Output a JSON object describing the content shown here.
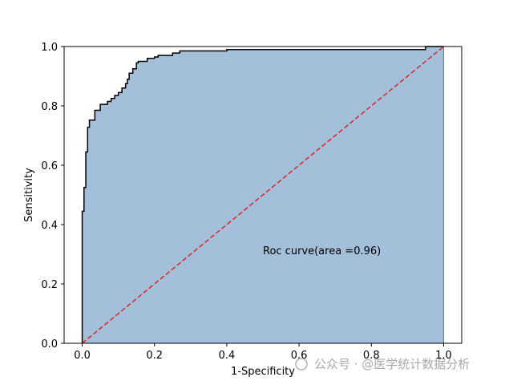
{
  "chart_data": {
    "type": "area",
    "xlabel": "1-Specificity",
    "ylabel": "Sensitivity",
    "xlim": [
      -0.05,
      1.05
    ],
    "ylim": [
      0.0,
      1.0
    ],
    "xticks": [
      "0.0",
      "0.2",
      "0.4",
      "0.6",
      "0.8",
      "1.0"
    ],
    "yticks": [
      "0.0",
      "0.2",
      "0.4",
      "0.6",
      "0.8",
      "1.0"
    ],
    "grid": false,
    "annotation": "Roc curve(area =0.96)",
    "fill_color": "#a3bfd9",
    "curve_color": "#000000",
    "reference_line_color": "#d62728",
    "series": [
      {
        "x": [
          0.0,
          0.0,
          0.005,
          0.005,
          0.01,
          0.01,
          0.015,
          0.015,
          0.02,
          0.02,
          0.035,
          0.035,
          0.05,
          0.05,
          0.07,
          0.07,
          0.08,
          0.08,
          0.09,
          0.09,
          0.1,
          0.1,
          0.11,
          0.11,
          0.12,
          0.12,
          0.125,
          0.125,
          0.13,
          0.13,
          0.14,
          0.14,
          0.15,
          0.15,
          0.155,
          0.155,
          0.18,
          0.18,
          0.2,
          0.2,
          0.21,
          0.21,
          0.25,
          0.25,
          0.27,
          0.27,
          0.4,
          0.4,
          0.95,
          0.95,
          1.0
        ],
        "y": [
          0.0,
          0.445,
          0.445,
          0.525,
          0.525,
          0.645,
          0.645,
          0.728,
          0.728,
          0.752,
          0.752,
          0.785,
          0.785,
          0.805,
          0.805,
          0.815,
          0.815,
          0.825,
          0.825,
          0.835,
          0.835,
          0.845,
          0.845,
          0.86,
          0.86,
          0.875,
          0.875,
          0.89,
          0.89,
          0.91,
          0.91,
          0.925,
          0.925,
          0.945,
          0.945,
          0.95,
          0.95,
          0.96,
          0.96,
          0.965,
          0.965,
          0.97,
          0.97,
          0.978,
          0.978,
          0.985,
          0.985,
          0.99,
          0.99,
          1.0,
          1.0
        ]
      },
      {
        "x": [
          0.0,
          1.0
        ],
        "y": [
          0.0,
          1.0
        ]
      }
    ]
  },
  "watermark": "公众号 · @医学统计数据分析"
}
